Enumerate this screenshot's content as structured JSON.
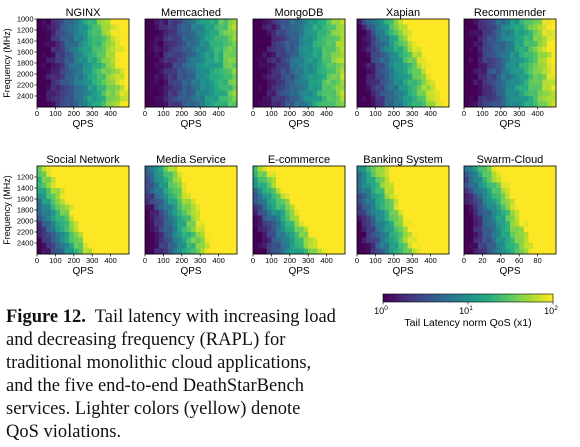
{
  "chart_data": {
    "type": "heatmap",
    "colorscale": "viridis",
    "colorbar": {
      "label": "Tail Latency norm QoS (x1)",
      "scale": "log",
      "range": [
        1,
        100
      ],
      "ticks": [
        "10^0",
        "10^1",
        "10^2"
      ]
    },
    "panels": [
      {
        "title": "NGINX",
        "xlabel": "QPS",
        "ylabel": "Frequency (MHz)",
        "xlim": [
          0,
          500
        ],
        "xticks": [
          0,
          100,
          200,
          300,
          400
        ],
        "ylim": [
          1000,
          2600
        ],
        "yticks": [
          1000,
          1200,
          1400,
          1600,
          1800,
          2000,
          2200,
          2400
        ],
        "qos_boundary": [
          [
            1000,
            430
          ],
          [
            1400,
            450
          ],
          [
            1800,
            470
          ],
          [
            2200,
            490
          ],
          [
            2600,
            500
          ]
        ]
      },
      {
        "title": "Memcached",
        "xlabel": "QPS",
        "ylabel": "",
        "xlim": [
          0,
          500
        ],
        "xticks": [
          0,
          100,
          200,
          300,
          400
        ],
        "ylim": [
          1000,
          2600
        ],
        "yticks": [
          1000,
          1200,
          1400,
          1600,
          1800,
          2000,
          2200,
          2400
        ],
        "qos_boundary": [
          [
            1000,
            560
          ],
          [
            2600,
            620
          ]
        ]
      },
      {
        "title": "MongoDB",
        "xlabel": "QPS",
        "ylabel": "",
        "xlim": [
          0,
          500
        ],
        "xticks": [
          0,
          100,
          200,
          300,
          400
        ],
        "ylim": [
          1000,
          2600
        ],
        "yticks": [
          1000,
          1200,
          1400,
          1600,
          1800,
          2000,
          2200,
          2400
        ],
        "qos_boundary": [
          [
            1000,
            540
          ],
          [
            2600,
            560
          ]
        ]
      },
      {
        "title": "Xapian",
        "xlabel": "QPS",
        "ylabel": "",
        "xlim": [
          0,
          500
        ],
        "xticks": [
          0,
          100,
          200,
          300,
          400
        ],
        "ylim": [
          1000,
          2600
        ],
        "yticks": [
          1000,
          1200,
          1400,
          1600,
          1800,
          2000,
          2200,
          2400
        ],
        "qos_boundary": [
          [
            1000,
            250
          ],
          [
            1400,
            320
          ],
          [
            1800,
            380
          ],
          [
            2200,
            430
          ],
          [
            2600,
            470
          ]
        ]
      },
      {
        "title": "Recommender",
        "xlabel": "QPS",
        "ylabel": "",
        "xlim": [
          0,
          500
        ],
        "xticks": [
          0,
          100,
          200,
          300,
          400
        ],
        "ylim": [
          1000,
          2600
        ],
        "yticks": [
          1000,
          1200,
          1400,
          1600,
          1800,
          2000,
          2200,
          2400
        ],
        "qos_boundary": [
          [
            1000,
            470
          ],
          [
            2600,
            520
          ]
        ]
      },
      {
        "title": "Social Network",
        "xlabel": "QPS",
        "ylabel": "Frequency (MHz)",
        "xlim": [
          0,
          500
        ],
        "xticks": [
          0,
          100,
          200,
          300,
          400
        ],
        "ylim": [
          1000,
          2600
        ],
        "yticks": [
          1200,
          1400,
          1600,
          1800,
          2000,
          2200,
          2400
        ],
        "qos_boundary": [
          [
            1000,
            60
          ],
          [
            1400,
            130
          ],
          [
            1800,
            200
          ],
          [
            2200,
            260
          ],
          [
            2600,
            310
          ]
        ]
      },
      {
        "title": "Media Service",
        "xlabel": "QPS",
        "ylabel": "",
        "xlim": [
          0,
          500
        ],
        "xticks": [
          0,
          100,
          200,
          300,
          400
        ],
        "ylim": [
          1000,
          2600
        ],
        "yticks": [
          1200,
          1400,
          1600,
          1800,
          2000,
          2200,
          2400
        ],
        "qos_boundary": [
          [
            1000,
            180
          ],
          [
            1400,
            230
          ],
          [
            1800,
            290
          ],
          [
            2200,
            330
          ],
          [
            2600,
            370
          ]
        ]
      },
      {
        "title": "E-commerce",
        "xlabel": "QPS",
        "ylabel": "",
        "xlim": [
          0,
          500
        ],
        "xticks": [
          0,
          100,
          200,
          300,
          400
        ],
        "ylim": [
          1000,
          2600
        ],
        "yticks": [
          1200,
          1400,
          1600,
          1800,
          2000,
          2200,
          2400
        ],
        "qos_boundary": [
          [
            1000,
            80
          ],
          [
            1400,
            170
          ],
          [
            1800,
            250
          ],
          [
            2200,
            320
          ],
          [
            2600,
            390
          ]
        ]
      },
      {
        "title": "Banking System",
        "xlabel": "QPS",
        "ylabel": "",
        "xlim": [
          0,
          500
        ],
        "xticks": [
          0,
          100,
          200,
          300,
          400
        ],
        "ylim": [
          1000,
          2600
        ],
        "yticks": [
          1200,
          1400,
          1600,
          1800,
          2000,
          2200,
          2400
        ],
        "qos_boundary": [
          [
            1000,
            160
          ],
          [
            1400,
            200
          ],
          [
            1800,
            250
          ],
          [
            2200,
            300
          ],
          [
            2600,
            340
          ]
        ]
      },
      {
        "title": "Swarm-Cloud",
        "xlabel": "QPS",
        "ylabel": "",
        "xlim": [
          0,
          100
        ],
        "xticks": [
          0,
          20,
          40,
          60,
          80
        ],
        "ylim": [
          1000,
          2600
        ],
        "yticks": [
          1200,
          1400,
          1600,
          1800,
          2000,
          2200,
          2400
        ],
        "qos_boundary": [
          [
            1000,
            35
          ],
          [
            1400,
            48
          ],
          [
            1800,
            60
          ],
          [
            2200,
            70
          ],
          [
            2600,
            78
          ]
        ]
      }
    ]
  },
  "caption": {
    "label": "Figure 12.",
    "text": "Tail latency with increasing load and decreasing frequency (RAPL) for traditional monolithic cloud applications, and the five end-to-end DeathStarBench services. Lighter colors (yellow) denote QoS violations."
  }
}
